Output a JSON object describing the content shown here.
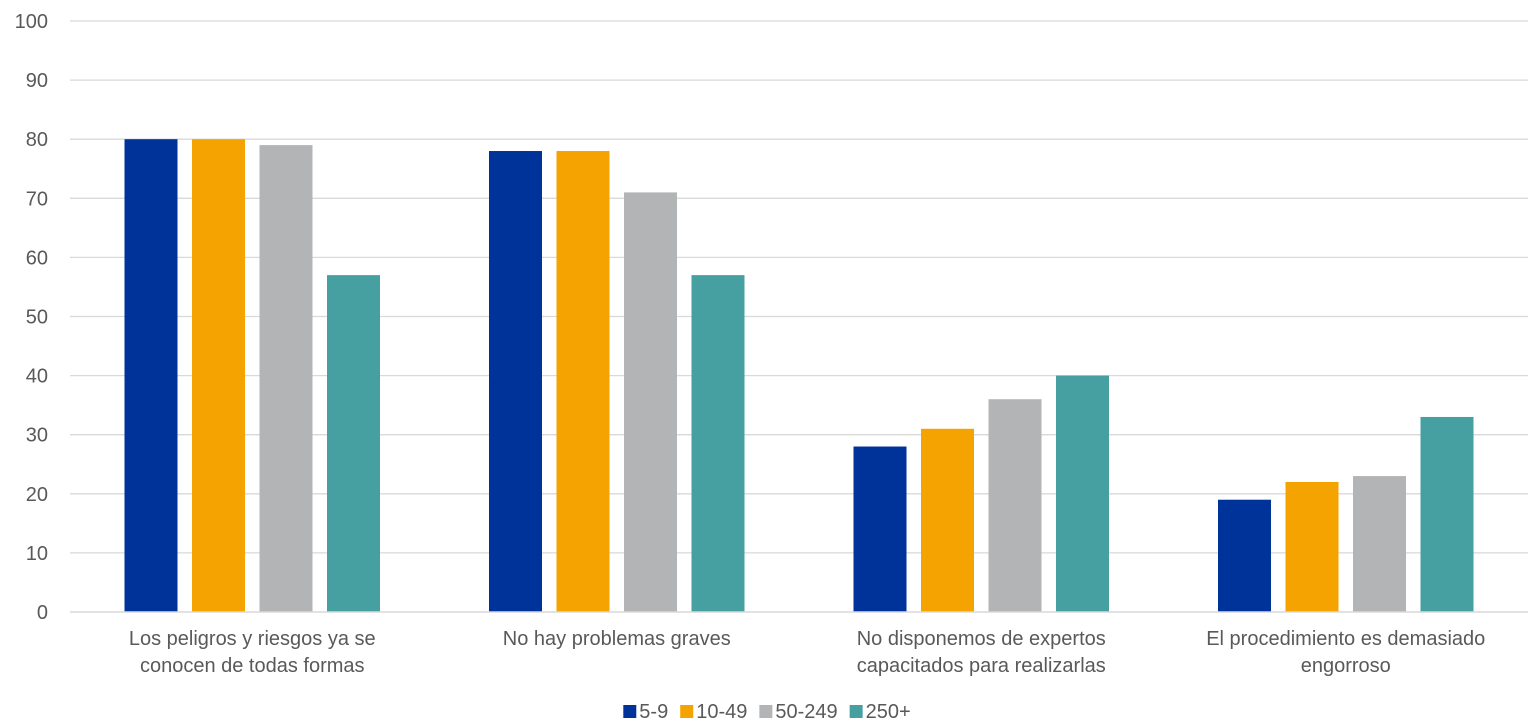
{
  "chart_data": {
    "type": "bar",
    "title": "",
    "xlabel": "",
    "ylabel": "",
    "ylim": [
      0,
      100
    ],
    "yticks": [
      0,
      10,
      20,
      30,
      40,
      50,
      60,
      70,
      80,
      90,
      100
    ],
    "grid": true,
    "legend_position": "bottom",
    "categories": [
      [
        "Los peligros y riesgos ya se",
        "conocen de todas formas"
      ],
      [
        "No hay problemas graves"
      ],
      [
        "No disponemos de expertos",
        "capacitados para realizarlas"
      ],
      [
        "El procedimiento es demasiado",
        "engorroso"
      ]
    ],
    "series": [
      {
        "name": "5-9",
        "color": "#003399",
        "values": [
          80,
          78,
          28,
          19
        ]
      },
      {
        "name": "10-49",
        "color": "#F5A300",
        "values": [
          80,
          78,
          31,
          22
        ]
      },
      {
        "name": "50-249",
        "color": "#B2B4B5",
        "values": [
          79,
          71,
          36,
          23
        ]
      },
      {
        "name": "250+",
        "color": "#46A0A1",
        "values": [
          57,
          57,
          40,
          33
        ]
      }
    ],
    "colors": {
      "grid": "#D9D9D9",
      "axis": "#D9D9D9",
      "text": "#595959"
    }
  }
}
